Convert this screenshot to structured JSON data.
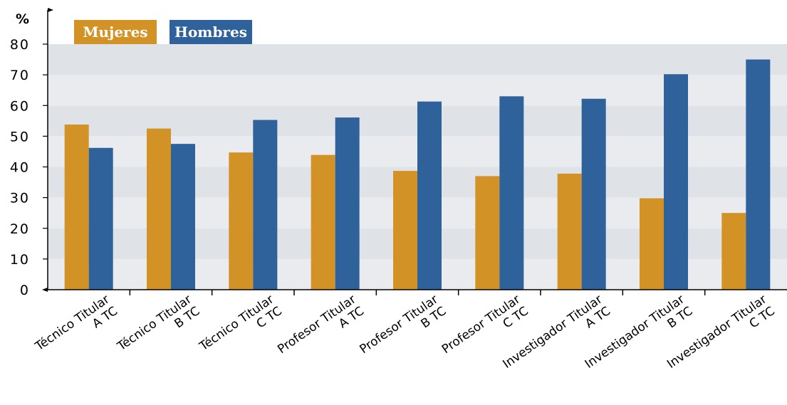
{
  "chart_data": {
    "type": "bar",
    "unit_label": "%",
    "categories": [
      [
        "Técnico Titular",
        "A TC"
      ],
      [
        "Técnico Titular",
        "B TC"
      ],
      [
        "Técnico Titular",
        "C TC"
      ],
      [
        "Profesor Titular",
        "A TC"
      ],
      [
        "Profesor Titular",
        "B TC"
      ],
      [
        "Profesor Titular",
        "C TC"
      ],
      [
        "Investigador Titular",
        "A TC"
      ],
      [
        "Investigador Titular",
        "B TC"
      ],
      [
        "Investigador Titular",
        "C TC"
      ]
    ],
    "series": [
      {
        "name": "Mujeres",
        "color": "#d39225",
        "values": [
          53.8,
          52.5,
          44.7,
          43.9,
          38.7,
          37.0,
          37.8,
          29.8,
          25.0
        ]
      },
      {
        "name": "Hombres",
        "color": "#2f619b",
        "values": [
          46.2,
          47.5,
          55.3,
          56.1,
          61.3,
          63.0,
          62.2,
          70.2,
          75.0
        ]
      }
    ],
    "yticks": [
      "0",
      "10",
      "20",
      "30",
      "40",
      "50",
      "60",
      "70",
      "80"
    ],
    "ylim": [
      0,
      80
    ],
    "grid": "alternating bands",
    "legend_position": "top-left"
  }
}
